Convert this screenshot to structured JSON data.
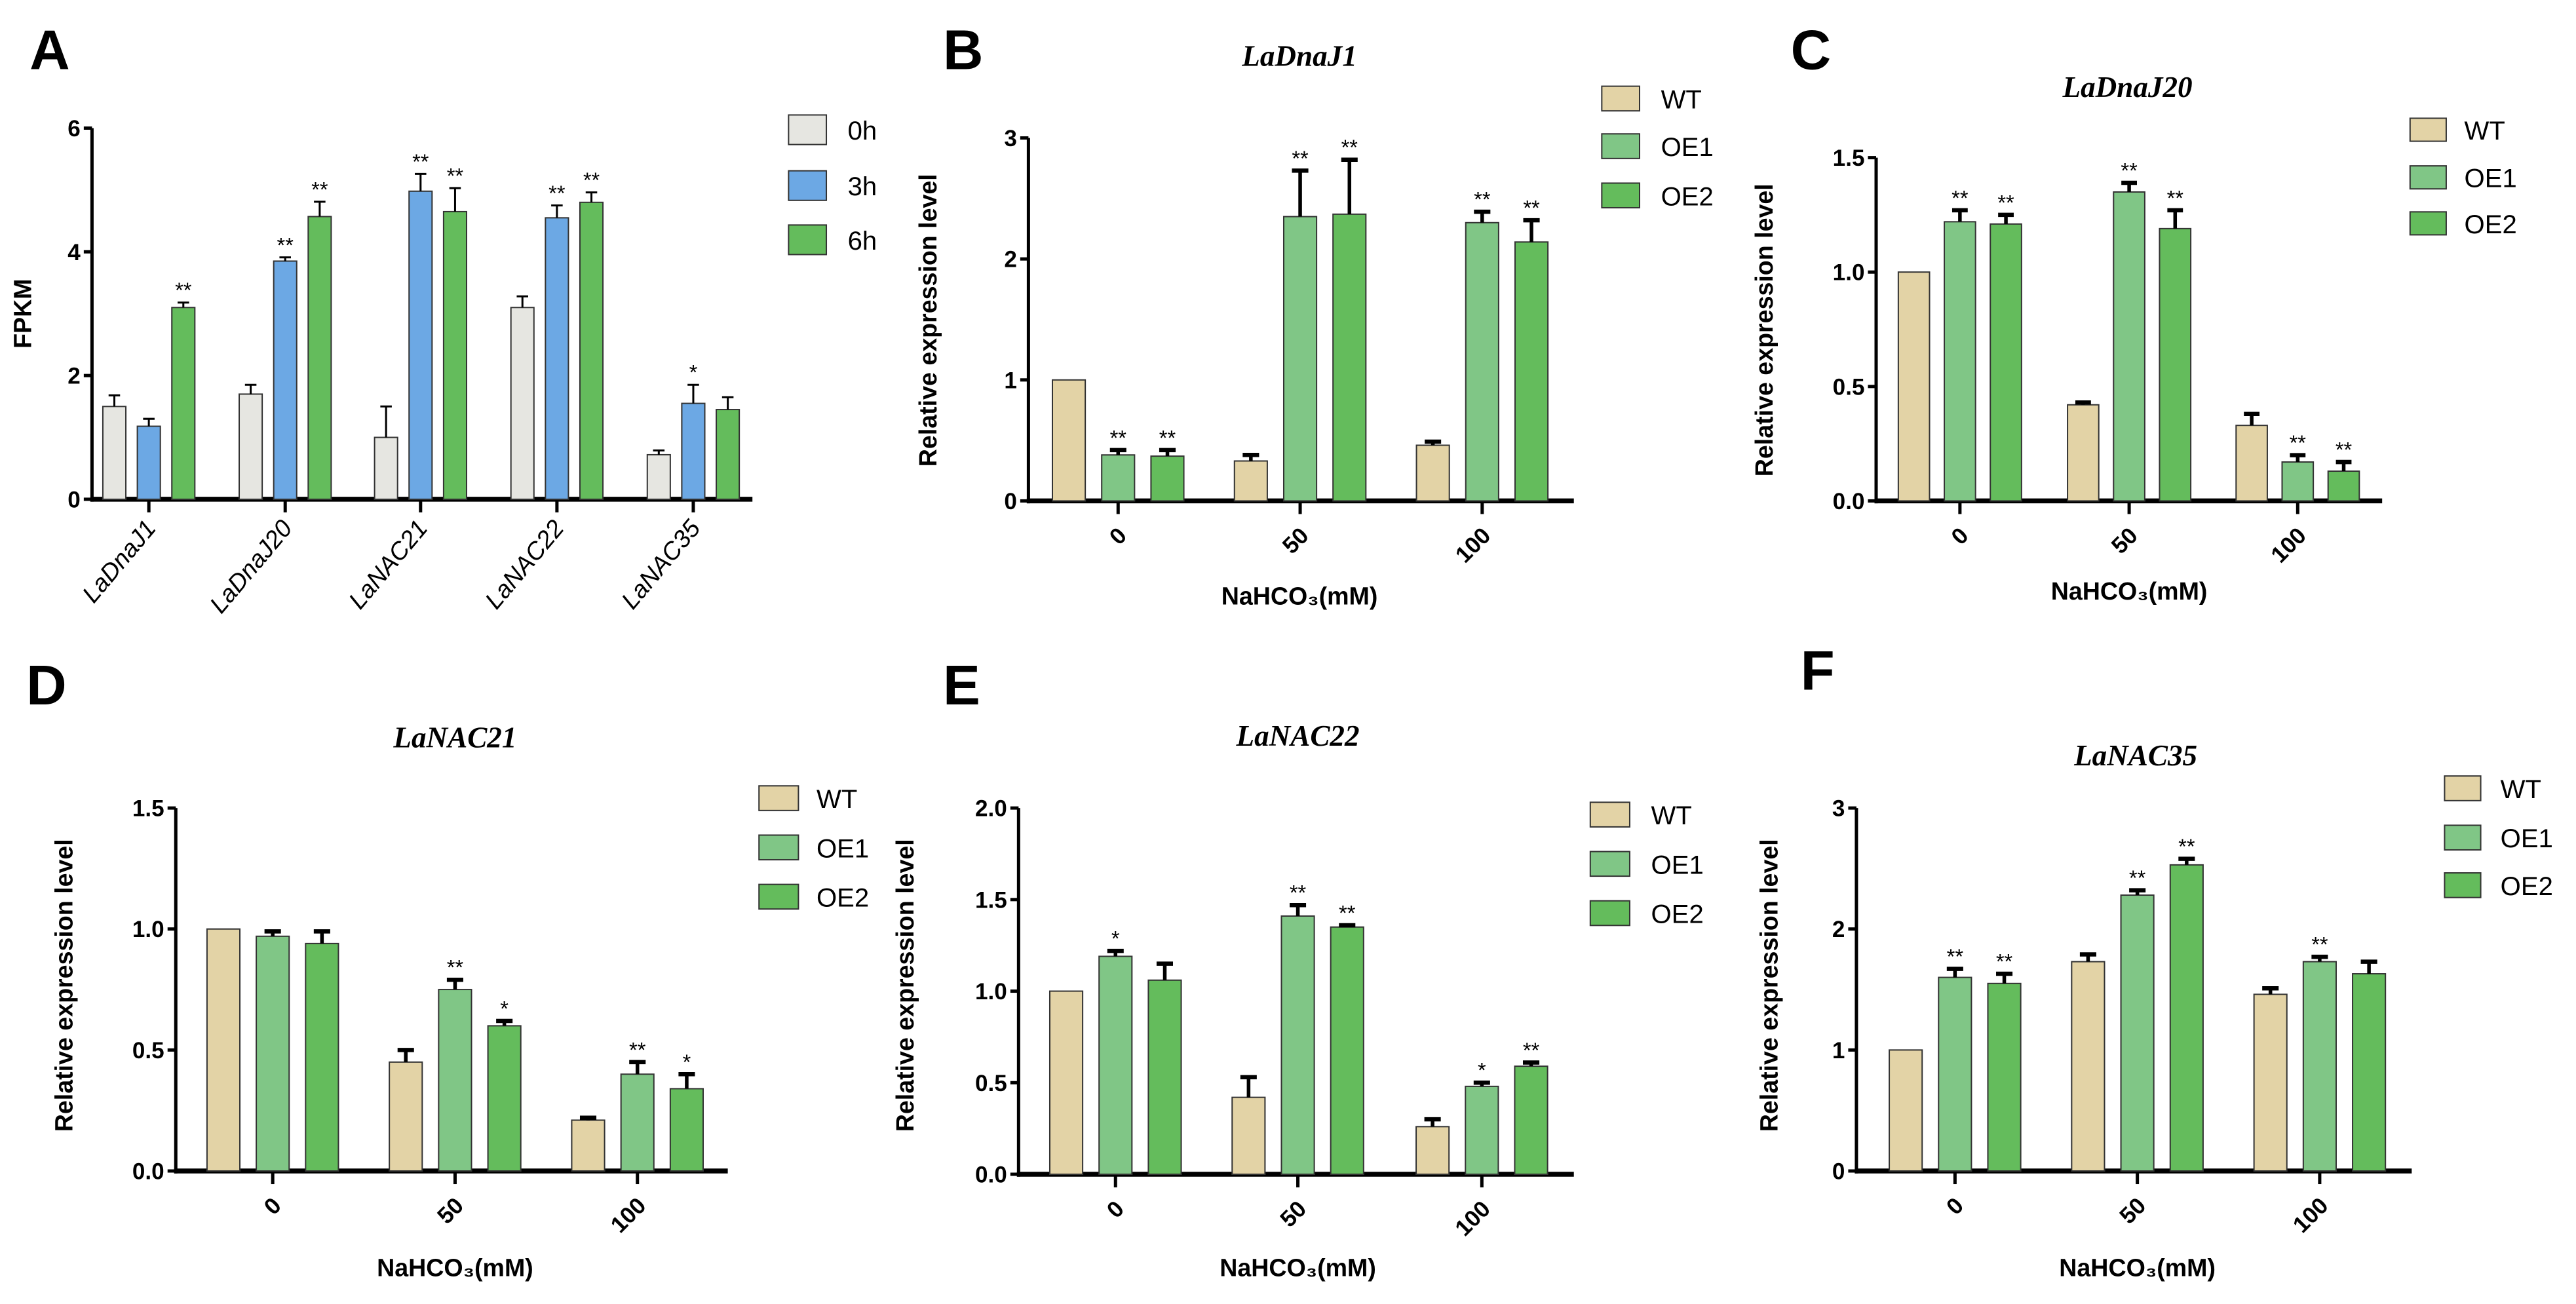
{
  "chart_data": [
    {
      "panel": "A",
      "type": "bar",
      "title": "",
      "ylabel": "FPKM",
      "xlabel": "",
      "ylim": [
        0,
        6
      ],
      "yticks": [
        "0",
        "2",
        "4",
        "6"
      ],
      "ytick_values": [
        0,
        2,
        4,
        6
      ],
      "categories": [
        "LaDnaJ1",
        "LaDnaJ20",
        "LaNAC21",
        "LaNAC22",
        "LaNAC35"
      ],
      "legend_position": "right",
      "series": [
        {
          "name": "0h",
          "color": "#e6e6e1",
          "values": [
            1.5,
            1.7,
            1.0,
            3.1,
            0.72
          ],
          "errors": [
            0.18,
            0.15,
            0.5,
            0.18,
            0.07
          ],
          "significance": [
            "",
            "",
            "",
            "",
            ""
          ]
        },
        {
          "name": "3h",
          "color": "#6ca8e4",
          "values": [
            1.18,
            3.85,
            4.98,
            4.55,
            1.55
          ],
          "errors": [
            0.12,
            0.06,
            0.28,
            0.2,
            0.3
          ],
          "significance": [
            "",
            "**",
            "**",
            "**",
            "*"
          ]
        },
        {
          "name": "6h",
          "color": "#64bc5c",
          "values": [
            3.1,
            4.57,
            4.65,
            4.8,
            1.45
          ],
          "errors": [
            0.08,
            0.24,
            0.38,
            0.16,
            0.2
          ],
          "significance": [
            "**",
            "**",
            "**",
            "**",
            ""
          ]
        }
      ]
    },
    {
      "panel": "B",
      "type": "bar",
      "title": "LaDnaJ1",
      "ylabel": "Relative expression level",
      "xlabel": "NaHCO₃(mM)",
      "ylim": [
        0,
        3
      ],
      "yticks": [
        "0",
        "1",
        "2",
        "3"
      ],
      "ytick_values": [
        0,
        1,
        2,
        3
      ],
      "categories": [
        "0",
        "50",
        "100"
      ],
      "legend_position": "top-right",
      "series": [
        {
          "name": "WT",
          "color": "#e3d3a6",
          "values": [
            1.0,
            0.33,
            0.46
          ],
          "errors": [
            0,
            0.05,
            0.03
          ],
          "significance": [
            "",
            "",
            ""
          ]
        },
        {
          "name": "OE1",
          "color": "#80c686",
          "values": [
            0.38,
            2.35,
            2.3
          ],
          "errors": [
            0.04,
            0.38,
            0.09
          ],
          "significance": [
            "**",
            "**",
            "**"
          ]
        },
        {
          "name": "OE2",
          "color": "#64bc5c",
          "values": [
            0.37,
            2.37,
            2.14
          ],
          "errors": [
            0.05,
            0.45,
            0.18
          ],
          "significance": [
            "**",
            "**",
            "**"
          ]
        }
      ]
    },
    {
      "panel": "C",
      "type": "bar",
      "title": "LaDnaJ20",
      "ylabel": "Relative expression level",
      "xlabel": "NaHCO₃(mM)",
      "ylim": [
        0,
        1.5
      ],
      "yticks": [
        "0.0",
        "0.5",
        "1.0",
        "1.5"
      ],
      "ytick_values": [
        0,
        0.5,
        1.0,
        1.5
      ],
      "categories": [
        "0",
        "50",
        "100"
      ],
      "legend_position": "top-right",
      "series": [
        {
          "name": "WT",
          "color": "#e3d3a6",
          "values": [
            1.0,
            0.42,
            0.33
          ],
          "errors": [
            0,
            0.01,
            0.05
          ],
          "significance": [
            "",
            "",
            ""
          ]
        },
        {
          "name": "OE1",
          "color": "#80c686",
          "values": [
            1.22,
            1.35,
            0.17
          ],
          "errors": [
            0.05,
            0.04,
            0.03
          ],
          "significance": [
            "**",
            "**",
            "**"
          ]
        },
        {
          "name": "OE2",
          "color": "#64bc5c",
          "values": [
            1.21,
            1.19,
            0.13
          ],
          "errors": [
            0.04,
            0.08,
            0.04
          ],
          "significance": [
            "**",
            "**",
            "**"
          ]
        }
      ]
    },
    {
      "panel": "D",
      "type": "bar",
      "title": "LaNAC21",
      "ylabel": "Relative expression level",
      "xlabel": "NaHCO₃(mM)",
      "ylim": [
        0,
        1.5
      ],
      "yticks": [
        "0.0",
        "0.5",
        "1.0",
        "1.5"
      ],
      "ytick_values": [
        0,
        0.5,
        1.0,
        1.5
      ],
      "categories": [
        "0",
        "50",
        "100"
      ],
      "legend_position": "top-right",
      "series": [
        {
          "name": "WT",
          "color": "#e3d3a6",
          "values": [
            1.0,
            0.45,
            0.21
          ],
          "errors": [
            0,
            0.05,
            0.01
          ],
          "significance": [
            "",
            "",
            ""
          ]
        },
        {
          "name": "OE1",
          "color": "#80c686",
          "values": [
            0.97,
            0.75,
            0.4
          ],
          "errors": [
            0.02,
            0.04,
            0.05
          ],
          "significance": [
            "",
            "**",
            "**"
          ]
        },
        {
          "name": "OE2",
          "color": "#64bc5c",
          "values": [
            0.94,
            0.6,
            0.34
          ],
          "errors": [
            0.05,
            0.02,
            0.06
          ],
          "significance": [
            "",
            "*",
            "*"
          ]
        }
      ]
    },
    {
      "panel": "E",
      "type": "bar",
      "title": "LaNAC22",
      "ylabel": "Relative expression level",
      "xlabel": "NaHCO₃(mM)",
      "ylim": [
        0,
        2.0
      ],
      "yticks": [
        "0.0",
        "0.5",
        "1.0",
        "1.5",
        "2.0"
      ],
      "ytick_values": [
        0,
        0.5,
        1.0,
        1.5,
        2.0
      ],
      "categories": [
        "0",
        "50",
        "100"
      ],
      "legend_position": "top-right",
      "series": [
        {
          "name": "WT",
          "color": "#e3d3a6",
          "values": [
            1.0,
            0.42,
            0.26
          ],
          "errors": [
            0,
            0.11,
            0.04
          ],
          "significance": [
            "",
            "",
            ""
          ]
        },
        {
          "name": "OE1",
          "color": "#80c686",
          "values": [
            1.19,
            1.41,
            0.48
          ],
          "errors": [
            0.03,
            0.06,
            0.02
          ],
          "significance": [
            "*",
            "**",
            "*"
          ]
        },
        {
          "name": "OE2",
          "color": "#64bc5c",
          "values": [
            1.06,
            1.35,
            0.59
          ],
          "errors": [
            0.09,
            0.01,
            0.02
          ],
          "significance": [
            "",
            "**",
            "**"
          ]
        }
      ]
    },
    {
      "panel": "F",
      "type": "bar",
      "title": "LaNAC35",
      "ylabel": "Relative expression level",
      "xlabel": "NaHCO₃(mM)",
      "ylim": [
        0,
        3
      ],
      "yticks": [
        "0",
        "1",
        "2",
        "3"
      ],
      "ytick_values": [
        0,
        1,
        2,
        3
      ],
      "categories": [
        "0",
        "50",
        "100"
      ],
      "legend_position": "top-right",
      "series": [
        {
          "name": "WT",
          "color": "#e3d3a6",
          "values": [
            1.0,
            1.73,
            1.46
          ],
          "errors": [
            0,
            0.06,
            0.05
          ],
          "significance": [
            "",
            "",
            ""
          ]
        },
        {
          "name": "OE1",
          "color": "#80c686",
          "values": [
            1.6,
            2.28,
            1.73
          ],
          "errors": [
            0.07,
            0.04,
            0.04
          ],
          "significance": [
            "**",
            "**",
            "**"
          ]
        },
        {
          "name": "OE2",
          "color": "#64bc5c",
          "values": [
            1.55,
            2.53,
            1.63
          ],
          "errors": [
            0.08,
            0.05,
            0.1
          ],
          "significance": [
            "**",
            "**",
            ""
          ]
        }
      ]
    }
  ]
}
